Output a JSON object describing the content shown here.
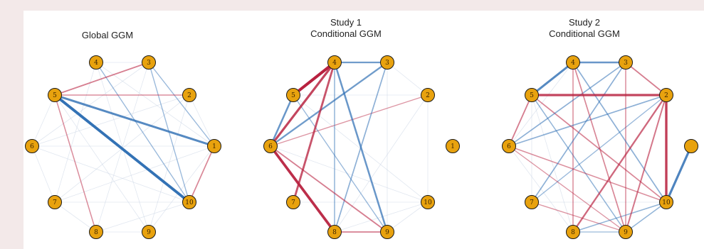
{
  "colors": {
    "node_fill": "#e8a20e",
    "node_stroke": "#1a1a1a",
    "positive_edge": "#2c6db3",
    "negative_edge": "#b8213f",
    "weak_edge": "#c8d3e3"
  },
  "node_labels": [
    "1",
    "2",
    "3",
    "4",
    "5",
    "6",
    "7",
    "8",
    "9",
    "10"
  ],
  "panels": [
    {
      "title_lines": [
        "Global GGM"
      ],
      "partial": false,
      "edges": [
        {
          "from": "5",
          "to": "10",
          "sign": "positive",
          "strength": 0.95
        },
        {
          "from": "5",
          "to": "1",
          "sign": "positive",
          "strength": 0.7
        },
        {
          "from": "5",
          "to": "3",
          "sign": "negative",
          "strength": 0.35
        },
        {
          "from": "5",
          "to": "2",
          "sign": "negative",
          "strength": 0.25
        },
        {
          "from": "5",
          "to": "8",
          "sign": "negative",
          "strength": 0.25
        },
        {
          "from": "10",
          "to": "1",
          "sign": "negative",
          "strength": 0.3
        },
        {
          "from": "10",
          "to": "4",
          "sign": "positive",
          "strength": 0.2
        },
        {
          "from": "10",
          "to": "3",
          "sign": "positive",
          "strength": 0.2
        },
        {
          "from": "10",
          "to": "6",
          "sign": "weak",
          "strength": 0.1
        },
        {
          "from": "10",
          "to": "7",
          "sign": "weak",
          "strength": 0.1
        },
        {
          "from": "10",
          "to": "8",
          "sign": "weak",
          "strength": 0.1
        },
        {
          "from": "4",
          "to": "3",
          "sign": "weak",
          "strength": 0.1
        },
        {
          "from": "4",
          "to": "1",
          "sign": "weak",
          "strength": 0.1
        },
        {
          "from": "4",
          "to": "9",
          "sign": "weak",
          "strength": 0.1
        },
        {
          "from": "3",
          "to": "1",
          "sign": "positive",
          "strength": 0.2
        },
        {
          "from": "3",
          "to": "8",
          "sign": "weak",
          "strength": 0.1
        },
        {
          "from": "3",
          "to": "6",
          "sign": "weak",
          "strength": 0.1
        },
        {
          "from": "2",
          "to": "1",
          "sign": "weak",
          "strength": 0.1
        },
        {
          "from": "2",
          "to": "7",
          "sign": "weak",
          "strength": 0.1
        },
        {
          "from": "2",
          "to": "6",
          "sign": "weak",
          "strength": 0.1
        },
        {
          "from": "6",
          "to": "5",
          "sign": "weak",
          "strength": 0.1
        },
        {
          "from": "6",
          "to": "7",
          "sign": "weak",
          "strength": 0.1
        },
        {
          "from": "6",
          "to": "1",
          "sign": "weak",
          "strength": 0.1
        },
        {
          "from": "7",
          "to": "8",
          "sign": "weak",
          "strength": 0.1
        },
        {
          "from": "7",
          "to": "1",
          "sign": "weak",
          "strength": 0.1
        },
        {
          "from": "8",
          "to": "9",
          "sign": "weak",
          "strength": 0.1
        },
        {
          "from": "9",
          "to": "1",
          "sign": "weak",
          "strength": 0.1
        },
        {
          "from": "9",
          "to": "5",
          "sign": "weak",
          "strength": 0.1
        },
        {
          "from": "2",
          "to": "9",
          "sign": "weak",
          "strength": 0.1
        },
        {
          "from": "4",
          "to": "7",
          "sign": "weak",
          "strength": 0.1
        }
      ]
    },
    {
      "title_lines": [
        "Study 1",
        "Conditional GGM"
      ],
      "partial": false,
      "edges": [
        {
          "from": "4",
          "to": "5",
          "sign": "negative",
          "strength": 1.0
        },
        {
          "from": "4",
          "to": "6",
          "sign": "negative",
          "strength": 0.75
        },
        {
          "from": "4",
          "to": "7",
          "sign": "negative",
          "strength": 0.65
        },
        {
          "from": "4",
          "to": "3",
          "sign": "positive",
          "strength": 0.5
        },
        {
          "from": "4",
          "to": "9",
          "sign": "positive",
          "strength": 0.55
        },
        {
          "from": "4",
          "to": "8",
          "sign": "positive",
          "strength": 0.25
        },
        {
          "from": "5",
          "to": "6",
          "sign": "positive",
          "strength": 0.55
        },
        {
          "from": "6",
          "to": "3",
          "sign": "positive",
          "strength": 0.5
        },
        {
          "from": "6",
          "to": "2",
          "sign": "negative",
          "strength": 0.2
        },
        {
          "from": "6",
          "to": "8",
          "sign": "negative",
          "strength": 0.9
        },
        {
          "from": "6",
          "to": "9",
          "sign": "negative",
          "strength": 0.35
        },
        {
          "from": "3",
          "to": "8",
          "sign": "positive",
          "strength": 0.3
        },
        {
          "from": "8",
          "to": "9",
          "sign": "negative",
          "strength": 0.35
        },
        {
          "from": "5",
          "to": "9",
          "sign": "positive",
          "strength": 0.2
        },
        {
          "from": "3",
          "to": "2",
          "sign": "weak",
          "strength": 0.1
        },
        {
          "from": "2",
          "to": "10",
          "sign": "weak",
          "strength": 0.1
        },
        {
          "from": "2",
          "to": "8",
          "sign": "weak",
          "strength": 0.1
        },
        {
          "from": "5",
          "to": "2",
          "sign": "weak",
          "strength": 0.1
        },
        {
          "from": "7",
          "to": "10",
          "sign": "weak",
          "strength": 0.1
        },
        {
          "from": "6",
          "to": "10",
          "sign": "weak",
          "strength": 0.1
        },
        {
          "from": "8",
          "to": "10",
          "sign": "weak",
          "strength": 0.1
        },
        {
          "from": "9",
          "to": "10",
          "sign": "weak",
          "strength": 0.1
        },
        {
          "from": "3",
          "to": "9",
          "sign": "weak",
          "strength": 0.1
        },
        {
          "from": "5",
          "to": "10",
          "sign": "weak",
          "strength": 0.1
        }
      ]
    },
    {
      "title_lines": [
        "Study 2",
        "Conditional GGM"
      ],
      "partial": true,
      "edges": [
        {
          "from": "4",
          "to": "5",
          "sign": "positive",
          "strength": 0.7
        },
        {
          "from": "4",
          "to": "3",
          "sign": "positive",
          "strength": 0.55
        },
        {
          "from": "5",
          "to": "2",
          "sign": "negative",
          "strength": 0.75
        },
        {
          "from": "3",
          "to": "2",
          "sign": "negative",
          "strength": 0.35
        },
        {
          "from": "2",
          "to": "10",
          "sign": "negative",
          "strength": 0.8
        },
        {
          "from": "2",
          "to": "8",
          "sign": "negative",
          "strength": 0.5
        },
        {
          "from": "2",
          "to": "6",
          "sign": "positive",
          "strength": 0.3
        },
        {
          "from": "2",
          "to": "9",
          "sign": "negative",
          "strength": 0.4
        },
        {
          "from": "1",
          "to": "10",
          "sign": "positive",
          "strength": 0.75
        },
        {
          "from": "5",
          "to": "6",
          "sign": "negative",
          "strength": 0.35
        },
        {
          "from": "5",
          "to": "10",
          "sign": "negative",
          "strength": 0.3
        },
        {
          "from": "5",
          "to": "9",
          "sign": "positive",
          "strength": 0.25
        },
        {
          "from": "6",
          "to": "3",
          "sign": "positive",
          "strength": 0.3
        },
        {
          "from": "4",
          "to": "10",
          "sign": "positive",
          "strength": 0.3
        },
        {
          "from": "4",
          "to": "9",
          "sign": "negative",
          "strength": 0.3
        },
        {
          "from": "4",
          "to": "8",
          "sign": "negative",
          "strength": 0.25
        },
        {
          "from": "3",
          "to": "7",
          "sign": "positive",
          "strength": 0.3
        },
        {
          "from": "3",
          "to": "9",
          "sign": "negative",
          "strength": 0.25
        },
        {
          "from": "6",
          "to": "10",
          "sign": "negative",
          "strength": 0.25
        },
        {
          "from": "7",
          "to": "9",
          "sign": "negative",
          "strength": 0.2
        },
        {
          "from": "8",
          "to": "9",
          "sign": "positive",
          "strength": 0.2
        },
        {
          "from": "9",
          "to": "10",
          "sign": "positive",
          "strength": 0.25
        },
        {
          "from": "8",
          "to": "10",
          "sign": "positive",
          "strength": 0.25
        },
        {
          "from": "7",
          "to": "2",
          "sign": "positive",
          "strength": 0.2
        },
        {
          "from": "6",
          "to": "9",
          "sign": "negative",
          "strength": 0.2
        },
        {
          "from": "5",
          "to": "7",
          "sign": "weak",
          "strength": 0.1
        },
        {
          "from": "5",
          "to": "8",
          "sign": "weak",
          "strength": 0.1
        },
        {
          "from": "7",
          "to": "10",
          "sign": "weak",
          "strength": 0.1
        },
        {
          "from": "6",
          "to": "8",
          "sign": "weak",
          "strength": 0.1
        },
        {
          "from": "4",
          "to": "6",
          "sign": "weak",
          "strength": 0.1
        }
      ]
    }
  ]
}
